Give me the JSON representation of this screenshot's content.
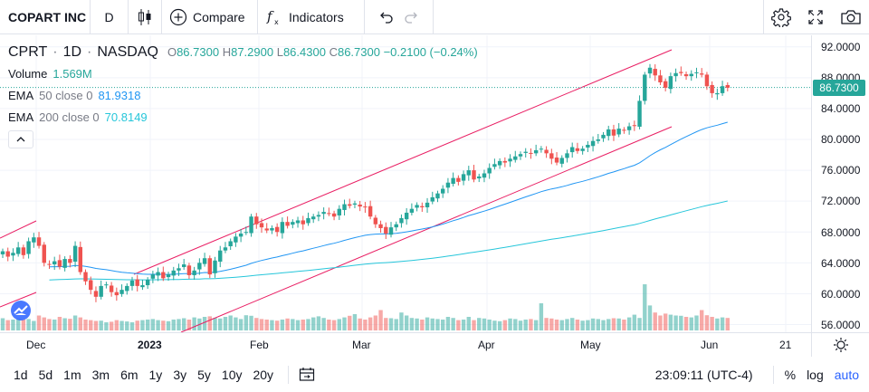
{
  "toolbar": {
    "symbol": "COPART INC",
    "interval": "D",
    "compare_label": "Compare",
    "indicators_label": "Indicators",
    "icons": [
      "candles-icon",
      "plus-circle-icon",
      "fx-icon",
      "undo-icon",
      "redo-icon",
      "gear-icon",
      "fullscreen-icon",
      "camera-icon"
    ]
  },
  "legend": {
    "symbol": "CPRT",
    "interval": "1D",
    "exchange": "NASDAQ",
    "ohlc": {
      "o_label": "O",
      "o": "86.7300",
      "h_label": "H",
      "h": "87.2900",
      "l_label": "L",
      "l": "86.4300",
      "c_label": "C",
      "c": "86.7300",
      "change": "−0.2100 (−0.24%)"
    },
    "volume_label": "Volume",
    "volume_value": "1.569M",
    "ema50_label": "EMA",
    "ema50_params": "50 close 0",
    "ema50_value": "81.9318",
    "ema200_label": "EMA",
    "ema200_params": "200 close 0",
    "ema200_value": "70.8149"
  },
  "price_axis": {
    "ticks": [
      "92.0000",
      "88.0000",
      "84.0000",
      "80.0000",
      "76.0000",
      "72.0000",
      "68.0000",
      "64.0000",
      "60.0000",
      "56.0000"
    ],
    "last_price": "86.7300"
  },
  "time_axis": {
    "ticks": [
      "Dec",
      "2023",
      "Feb",
      "Mar",
      "Apr",
      "May",
      "Jun",
      "21"
    ]
  },
  "bottom_bar": {
    "ranges": [
      "1d",
      "5d",
      "1m",
      "3m",
      "6m",
      "1y",
      "3y",
      "5y",
      "10y",
      "20y"
    ],
    "time": "23:09:11 (UTC-4)",
    "percent_label": "%",
    "log_label": "log",
    "auto_label": "auto"
  },
  "colors": {
    "up": "#26a69a",
    "down": "#ef5350",
    "ema50": "#2196f3",
    "ema200": "#26c6da",
    "channel": "#e91e63",
    "accent": "#2962ff"
  },
  "chart_data": {
    "type": "candlestick",
    "symbol": "CPRT",
    "interval": "1D",
    "ylim": [
      55,
      93.5
    ],
    "close": [
      65.5,
      64.8,
      65.3,
      66.0,
      65.0,
      66.8,
      67.3,
      66.2,
      64.0,
      63.8,
      64.2,
      63.5,
      64.5,
      64.0,
      66.2,
      62.8,
      61.6,
      60.5,
      59.6,
      61.0,
      61.2,
      60.2,
      59.8,
      60.5,
      61.0,
      61.7,
      61.0,
      61.1,
      61.8,
      62.5,
      62.8,
      62.0,
      62.5,
      63.0,
      63.3,
      63.8,
      62.4,
      63.0,
      64.0,
      64.6,
      62.5,
      64.3,
      65.6,
      66.0,
      66.8,
      67.4,
      67.8,
      68.0,
      70.0,
      69.0,
      68.6,
      68.2,
      68.5,
      68.0,
      69.3,
      68.8,
      69.3,
      69.5,
      69.0,
      69.8,
      70.0,
      70.2,
      70.6,
      70.4,
      70.0,
      71.0,
      71.6,
      71.4,
      71.7,
      71.3,
      71.2,
      70.0,
      69.0,
      68.5,
      67.8,
      68.6,
      69.0,
      69.8,
      70.5,
      71.0,
      71.5,
      71.2,
      71.8,
      72.5,
      73.0,
      73.6,
      74.4,
      75.0,
      74.5,
      75.5,
      76.0,
      74.8,
      75.2,
      75.6,
      76.3,
      76.8,
      77.2,
      77.0,
      77.5,
      77.8,
      78.1,
      78.4,
      78.2,
      78.6,
      78.8,
      78.2,
      77.5,
      77.0,
      77.6,
      78.2,
      79.0,
      78.5,
      78.8,
      79.3,
      79.8,
      80.0,
      80.6,
      81.3,
      80.5,
      81.4,
      81.2,
      81.7,
      81.8,
      85.0,
      88.4,
      89.3,
      88.3,
      87.4,
      86.7,
      88.2,
      88.6,
      88.6,
      88.2,
      88.5,
      88.7,
      88.4,
      86.9,
      86.0,
      86.0,
      86.9,
      86.7
    ],
    "volume_relative": [
      0.45,
      0.38,
      0.4,
      0.43,
      0.4,
      0.42,
      0.35,
      0.55,
      0.48,
      0.42,
      0.4,
      0.5,
      0.45,
      0.43,
      0.55,
      0.48,
      0.4,
      0.38,
      0.35,
      0.36,
      0.3,
      0.32,
      0.38,
      0.35,
      0.33,
      0.3,
      0.36,
      0.38,
      0.4,
      0.42,
      0.38,
      0.36,
      0.34,
      0.4,
      0.42,
      0.45,
      0.4,
      0.48,
      0.44,
      0.5,
      0.52,
      0.46,
      0.44,
      0.5,
      0.55,
      0.48,
      0.42,
      0.56,
      0.54,
      0.46,
      0.42,
      0.4,
      0.38,
      0.36,
      0.4,
      0.44,
      0.42,
      0.38,
      0.4,
      0.42,
      0.48,
      0.52,
      0.46,
      0.4,
      0.38,
      0.42,
      0.48,
      0.54,
      0.6,
      0.44,
      0.4,
      0.48,
      0.55,
      0.75,
      0.46,
      0.45,
      0.42,
      0.66,
      0.55,
      0.46,
      0.44,
      0.4,
      0.48,
      0.44,
      0.42,
      0.4,
      0.5,
      0.46,
      0.38,
      0.4,
      0.5,
      0.38,
      0.46,
      0.44,
      0.4,
      0.36,
      0.34,
      0.38,
      0.44,
      0.42,
      0.36,
      0.4,
      0.42,
      0.38,
      1.0,
      0.46,
      0.44,
      0.4,
      0.38,
      0.42,
      0.46,
      0.4,
      0.36,
      0.38,
      0.44,
      0.42,
      0.38,
      0.42,
      0.45,
      0.44,
      0.4,
      0.48,
      0.58,
      0.46,
      1.7,
      0.92,
      0.66,
      0.55,
      0.62,
      0.58,
      0.55,
      0.54,
      0.5,
      0.48,
      0.55,
      0.75,
      0.56,
      0.5,
      0.44,
      0.48,
      0.46
    ]
  }
}
